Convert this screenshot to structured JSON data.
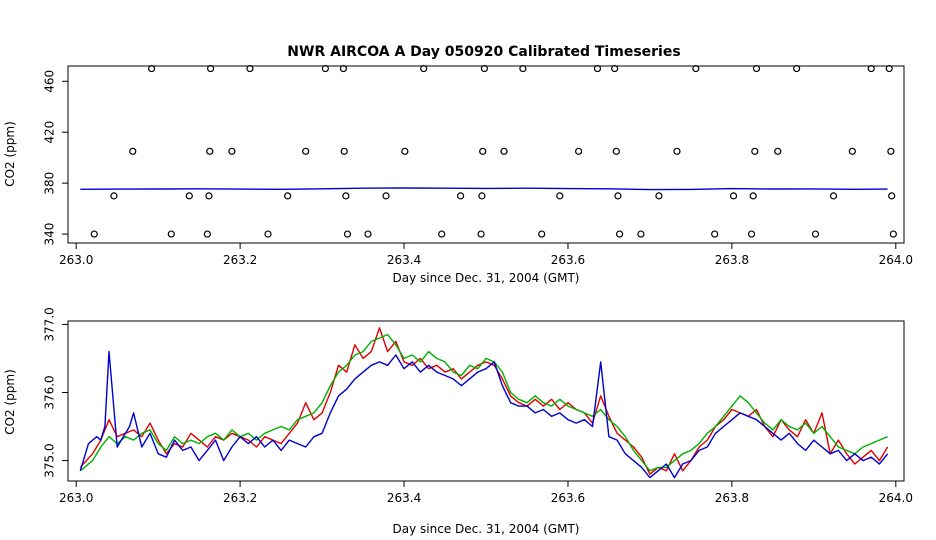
{
  "chart_data": [
    {
      "type": "scatter",
      "title": "NWR AIRCOA A  Day 050920  Calibrated Timeseries",
      "xlabel": "Day since Dec. 31, 2004 (GMT)",
      "ylabel": "CO2 (ppm)",
      "xlim": [
        262.99,
        264.01
      ],
      "ylim": [
        333,
        472
      ],
      "x_ticks": [
        "263.0",
        "263.2",
        "263.4",
        "263.6",
        "263.8",
        "264.0"
      ],
      "y_ticks": [
        "340",
        "380",
        "420",
        "460"
      ],
      "points": [
        {
          "x": 263.022,
          "y": 340
        },
        {
          "x": 263.046,
          "y": 370
        },
        {
          "x": 263.069,
          "y": 405
        },
        {
          "x": 263.092,
          "y": 470
        },
        {
          "x": 263.116,
          "y": 340
        },
        {
          "x": 263.138,
          "y": 370
        },
        {
          "x": 263.16,
          "y": 340
        },
        {
          "x": 263.162,
          "y": 370
        },
        {
          "x": 263.163,
          "y": 405
        },
        {
          "x": 263.164,
          "y": 470
        },
        {
          "x": 263.19,
          "y": 405
        },
        {
          "x": 263.212,
          "y": 470
        },
        {
          "x": 263.234,
          "y": 340
        },
        {
          "x": 263.258,
          "y": 370
        },
        {
          "x": 263.28,
          "y": 405
        },
        {
          "x": 263.304,
          "y": 470
        },
        {
          "x": 263.326,
          "y": 470
        },
        {
          "x": 263.327,
          "y": 405
        },
        {
          "x": 263.329,
          "y": 370
        },
        {
          "x": 263.331,
          "y": 340
        },
        {
          "x": 263.356,
          "y": 340
        },
        {
          "x": 263.378,
          "y": 370
        },
        {
          "x": 263.401,
          "y": 405
        },
        {
          "x": 263.424,
          "y": 470
        },
        {
          "x": 263.446,
          "y": 340
        },
        {
          "x": 263.469,
          "y": 370
        },
        {
          "x": 263.494,
          "y": 340
        },
        {
          "x": 263.495,
          "y": 370
        },
        {
          "x": 263.496,
          "y": 405
        },
        {
          "x": 263.498,
          "y": 470
        },
        {
          "x": 263.522,
          "y": 405
        },
        {
          "x": 263.545,
          "y": 470
        },
        {
          "x": 263.568,
          "y": 340
        },
        {
          "x": 263.59,
          "y": 370
        },
        {
          "x": 263.613,
          "y": 405
        },
        {
          "x": 263.636,
          "y": 470
        },
        {
          "x": 263.657,
          "y": 470
        },
        {
          "x": 263.659,
          "y": 405
        },
        {
          "x": 263.661,
          "y": 370
        },
        {
          "x": 263.663,
          "y": 340
        },
        {
          "x": 263.689,
          "y": 340
        },
        {
          "x": 263.711,
          "y": 370
        },
        {
          "x": 263.733,
          "y": 405
        },
        {
          "x": 263.756,
          "y": 470
        },
        {
          "x": 263.779,
          "y": 340
        },
        {
          "x": 263.802,
          "y": 370
        },
        {
          "x": 263.824,
          "y": 340
        },
        {
          "x": 263.826,
          "y": 370
        },
        {
          "x": 263.828,
          "y": 405
        },
        {
          "x": 263.83,
          "y": 470
        },
        {
          "x": 263.856,
          "y": 405
        },
        {
          "x": 263.879,
          "y": 470
        },
        {
          "x": 263.902,
          "y": 340
        },
        {
          "x": 263.924,
          "y": 370
        },
        {
          "x": 263.947,
          "y": 405
        },
        {
          "x": 263.97,
          "y": 470
        },
        {
          "x": 263.992,
          "y": 470
        },
        {
          "x": 263.994,
          "y": 405
        },
        {
          "x": 263.995,
          "y": 370
        },
        {
          "x": 263.997,
          "y": 340
        }
      ],
      "lines": [
        {
          "color": "#0000cc",
          "x": [
            263.005,
            263.05,
            263.1,
            263.15,
            263.2,
            263.25,
            263.3,
            263.35,
            263.4,
            263.45,
            263.5,
            263.55,
            263.6,
            263.65,
            263.7,
            263.75,
            263.8,
            263.85,
            263.9,
            263.95,
            263.99
          ],
          "y": [
            375.2,
            375.3,
            375.4,
            375.6,
            375.3,
            375.2,
            375.6,
            376.0,
            376.2,
            376.0,
            375.9,
            376.0,
            375.7,
            375.6,
            374.9,
            375.1,
            375.7,
            375.4,
            375.5,
            375.2,
            375.3
          ]
        }
      ]
    },
    {
      "type": "line",
      "title": "",
      "xlabel": "Day since Dec. 31, 2004 (GMT)",
      "ylabel": "CO2 (ppm)",
      "xlim": [
        262.99,
        264.01
      ],
      "ylim": [
        374.7,
        377.05
      ],
      "x_ticks": [
        "263.0",
        "263.2",
        "263.4",
        "263.6",
        "263.8",
        "264.0"
      ],
      "y_ticks": [
        "375.0",
        "376.0",
        "377.0"
      ],
      "series": [
        {
          "color": "#e00000",
          "x": [
            263.005,
            263.02,
            263.03,
            263.04,
            263.05,
            263.06,
            263.07,
            263.08,
            263.09,
            263.1,
            263.11,
            263.12,
            263.13,
            263.14,
            263.15,
            263.16,
            263.17,
            263.18,
            263.19,
            263.2,
            263.21,
            263.22,
            263.23,
            263.24,
            263.25,
            263.26,
            263.27,
            263.28,
            263.29,
            263.3,
            263.31,
            263.32,
            263.33,
            263.34,
            263.35,
            263.36,
            263.37,
            263.38,
            263.39,
            263.4,
            263.41,
            263.42,
            263.43,
            263.44,
            263.45,
            263.46,
            263.47,
            263.48,
            263.49,
            263.5,
            263.51,
            263.52,
            263.53,
            263.54,
            263.55,
            263.56,
            263.57,
            263.58,
            263.59,
            263.6,
            263.61,
            263.62,
            263.63,
            263.64,
            263.65,
            263.66,
            263.67,
            263.68,
            263.69,
            263.7,
            263.71,
            263.72,
            263.73,
            263.74,
            263.75,
            263.76,
            263.77,
            263.78,
            263.79,
            263.8,
            263.81,
            263.82,
            263.83,
            263.84,
            263.85,
            263.86,
            263.87,
            263.88,
            263.89,
            263.9,
            263.91,
            263.92,
            263.93,
            263.94,
            263.95,
            263.96,
            263.97,
            263.98,
            263.99
          ],
          "y": [
            374.9,
            375.1,
            375.3,
            375.6,
            375.35,
            375.4,
            375.45,
            375.35,
            375.55,
            375.3,
            375.1,
            375.25,
            375.2,
            375.4,
            375.3,
            375.2,
            375.35,
            375.3,
            375.4,
            375.35,
            375.3,
            375.2,
            375.35,
            375.3,
            375.25,
            375.4,
            375.55,
            375.85,
            375.6,
            375.7,
            376.0,
            376.4,
            376.3,
            376.7,
            376.5,
            376.6,
            376.95,
            376.6,
            376.75,
            376.45,
            376.4,
            376.5,
            376.35,
            376.4,
            376.3,
            376.35,
            376.2,
            376.3,
            376.4,
            376.45,
            376.4,
            376.2,
            375.95,
            375.85,
            375.8,
            375.9,
            375.8,
            375.9,
            375.75,
            375.85,
            375.75,
            375.7,
            375.55,
            375.95,
            375.65,
            375.4,
            375.3,
            375.2,
            375.05,
            374.8,
            374.9,
            374.85,
            375.1,
            374.85,
            375.0,
            375.2,
            375.3,
            375.5,
            375.6,
            375.75,
            375.7,
            375.65,
            375.75,
            375.5,
            375.35,
            375.6,
            375.45,
            375.35,
            375.6,
            375.4,
            375.7,
            375.1,
            375.3,
            375.1,
            374.95,
            375.05,
            375.15,
            375.0,
            375.2
          ]
        },
        {
          "color": "#00b000",
          "x": [
            263.005,
            263.02,
            263.03,
            263.04,
            263.05,
            263.06,
            263.07,
            263.08,
            263.09,
            263.1,
            263.11,
            263.12,
            263.13,
            263.14,
            263.15,
            263.16,
            263.17,
            263.18,
            263.19,
            263.2,
            263.21,
            263.22,
            263.23,
            263.24,
            263.25,
            263.26,
            263.27,
            263.28,
            263.29,
            263.3,
            263.31,
            263.32,
            263.33,
            263.34,
            263.35,
            263.36,
            263.37,
            263.38,
            263.39,
            263.4,
            263.41,
            263.42,
            263.43,
            263.44,
            263.45,
            263.46,
            263.47,
            263.48,
            263.49,
            263.5,
            263.51,
            263.52,
            263.53,
            263.54,
            263.55,
            263.56,
            263.57,
            263.58,
            263.59,
            263.6,
            263.61,
            263.62,
            263.63,
            263.64,
            263.65,
            263.66,
            263.67,
            263.68,
            263.69,
            263.7,
            263.71,
            263.72,
            263.73,
            263.74,
            263.75,
            263.76,
            263.77,
            263.78,
            263.79,
            263.8,
            263.81,
            263.82,
            263.83,
            263.84,
            263.85,
            263.86,
            263.87,
            263.88,
            263.89,
            263.9,
            263.91,
            263.92,
            263.93,
            263.94,
            263.95,
            263.96,
            263.97,
            263.98,
            263.99
          ],
          "y": [
            374.85,
            375.0,
            375.2,
            375.35,
            375.25,
            375.35,
            375.3,
            375.4,
            375.45,
            375.25,
            375.15,
            375.35,
            375.25,
            375.3,
            375.25,
            375.35,
            375.4,
            375.3,
            375.45,
            375.35,
            375.4,
            375.3,
            375.4,
            375.45,
            375.5,
            375.45,
            375.6,
            375.65,
            375.7,
            375.85,
            376.1,
            376.3,
            376.4,
            376.55,
            376.6,
            376.75,
            376.8,
            376.85,
            376.7,
            376.5,
            376.55,
            376.45,
            376.6,
            376.5,
            376.45,
            376.3,
            376.25,
            376.4,
            376.35,
            376.5,
            376.45,
            376.3,
            376.0,
            375.9,
            375.85,
            375.95,
            375.85,
            375.8,
            375.9,
            375.8,
            375.75,
            375.7,
            375.65,
            375.75,
            375.6,
            375.5,
            375.35,
            375.15,
            375.0,
            374.85,
            374.9,
            374.9,
            375.0,
            375.1,
            375.15,
            375.25,
            375.4,
            375.5,
            375.65,
            375.8,
            375.95,
            375.85,
            375.7,
            375.55,
            375.45,
            375.6,
            375.5,
            375.45,
            375.55,
            375.4,
            375.5,
            375.35,
            375.2,
            375.15,
            375.1,
            375.2,
            375.25,
            375.3,
            375.35
          ]
        },
        {
          "color": "#0000cc",
          "x": [
            263.005,
            263.015,
            263.025,
            263.03,
            263.035,
            263.04,
            263.05,
            263.06,
            263.065,
            263.07,
            263.08,
            263.09,
            263.1,
            263.11,
            263.12,
            263.13,
            263.14,
            263.15,
            263.16,
            263.17,
            263.18,
            263.19,
            263.2,
            263.21,
            263.22,
            263.23,
            263.24,
            263.25,
            263.26,
            263.27,
            263.28,
            263.29,
            263.3,
            263.31,
            263.32,
            263.33,
            263.34,
            263.35,
            263.36,
            263.37,
            263.38,
            263.39,
            263.4,
            263.41,
            263.42,
            263.43,
            263.44,
            263.45,
            263.46,
            263.47,
            263.48,
            263.49,
            263.5,
            263.51,
            263.52,
            263.53,
            263.54,
            263.55,
            263.56,
            263.57,
            263.58,
            263.59,
            263.6,
            263.61,
            263.62,
            263.63,
            263.64,
            263.65,
            263.66,
            263.67,
            263.68,
            263.69,
            263.7,
            263.71,
            263.72,
            263.73,
            263.74,
            263.75,
            263.76,
            263.77,
            263.78,
            263.79,
            263.8,
            263.81,
            263.82,
            263.83,
            263.84,
            263.85,
            263.86,
            263.87,
            263.88,
            263.89,
            263.9,
            263.91,
            263.92,
            263.93,
            263.94,
            263.95,
            263.96,
            263.97,
            263.98,
            263.99
          ],
          "y": [
            374.85,
            375.25,
            375.35,
            375.3,
            375.5,
            376.6,
            375.2,
            375.4,
            375.5,
            375.7,
            375.2,
            375.4,
            375.1,
            375.05,
            375.3,
            375.15,
            375.2,
            375.0,
            375.15,
            375.3,
            375.0,
            375.2,
            375.35,
            375.25,
            375.35,
            375.2,
            375.3,
            375.15,
            375.3,
            375.25,
            375.2,
            375.35,
            375.4,
            375.7,
            375.95,
            376.05,
            376.2,
            376.3,
            376.4,
            376.45,
            376.4,
            376.55,
            376.35,
            376.45,
            376.3,
            376.4,
            376.3,
            376.25,
            376.2,
            376.1,
            376.2,
            376.3,
            376.35,
            376.45,
            376.1,
            375.85,
            375.8,
            375.8,
            375.7,
            375.75,
            375.65,
            375.7,
            375.6,
            375.55,
            375.6,
            375.5,
            376.45,
            375.35,
            375.3,
            375.1,
            375.0,
            374.9,
            374.75,
            374.85,
            374.95,
            374.75,
            374.95,
            375.0,
            375.15,
            375.2,
            375.4,
            375.5,
            375.6,
            375.7,
            375.65,
            375.6,
            375.5,
            375.4,
            375.3,
            375.4,
            375.25,
            375.15,
            375.3,
            375.2,
            375.1,
            375.15,
            375.0,
            375.1,
            375.0,
            375.05,
            374.95,
            375.1
          ]
        }
      ]
    }
  ]
}
